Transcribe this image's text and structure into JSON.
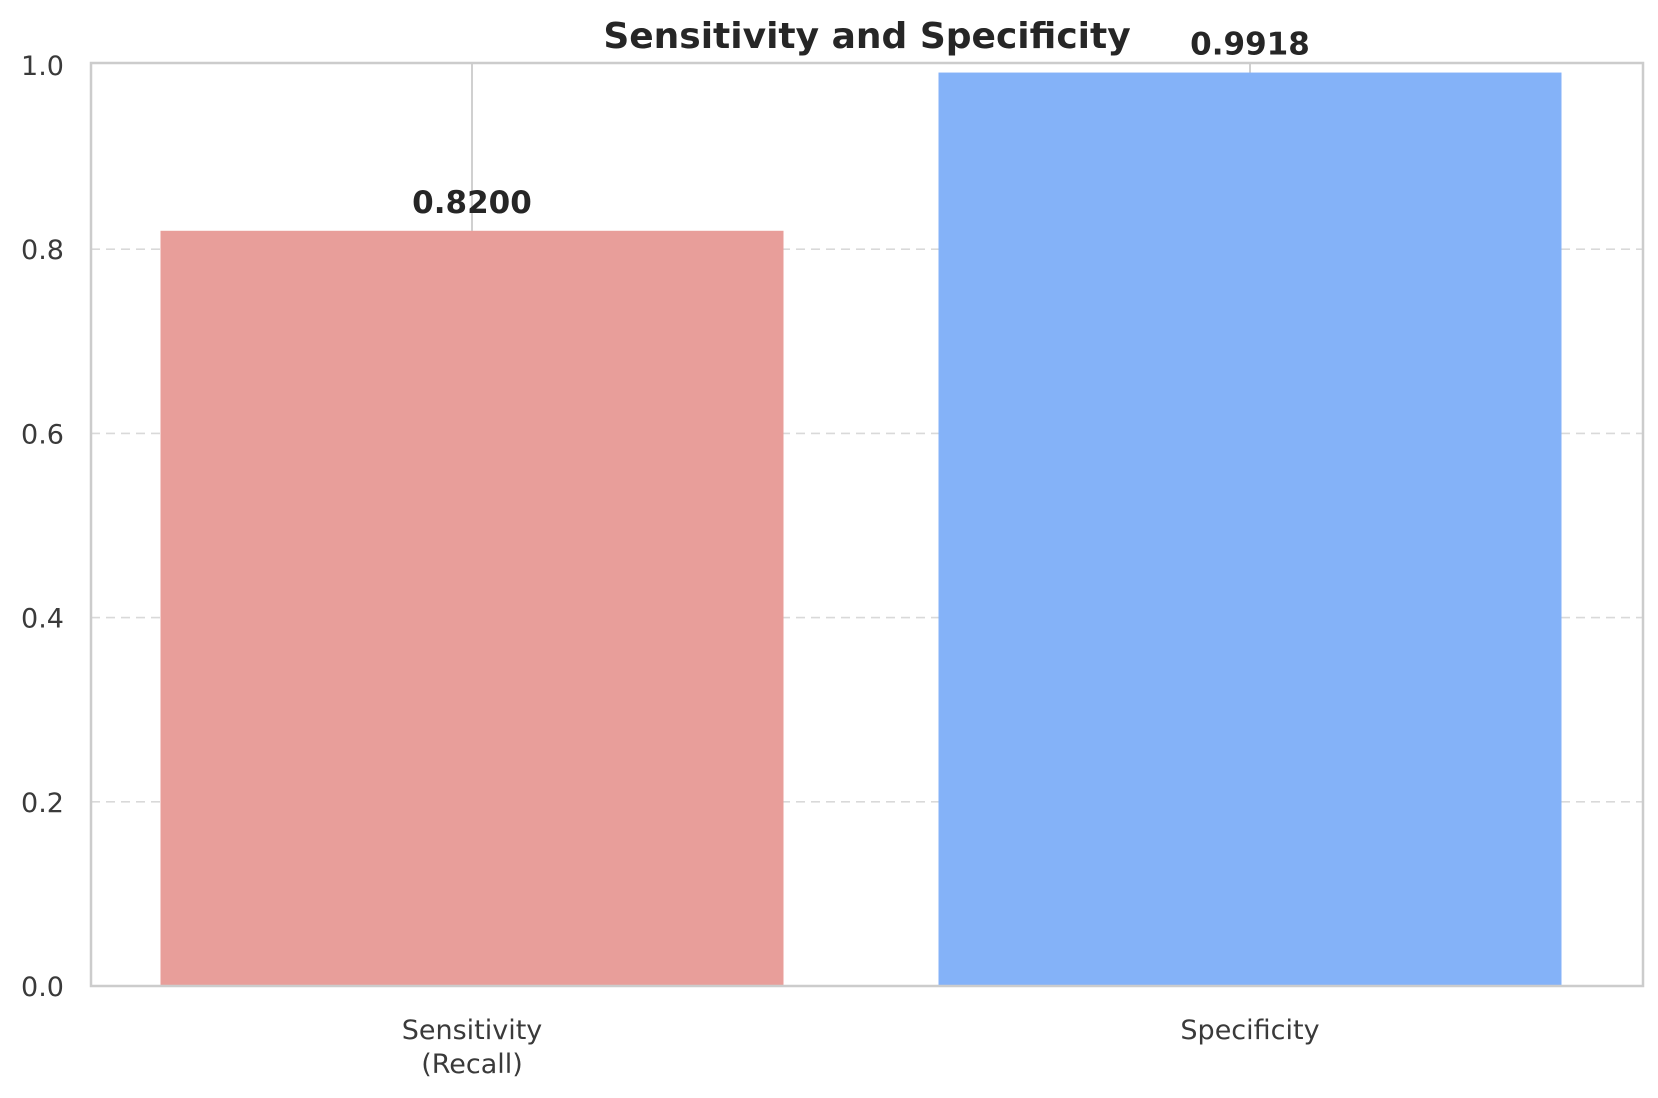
{
  "chart_data": {
    "type": "bar",
    "title": "Sensitivity and Specificity",
    "xlabel": "",
    "ylabel": "",
    "ylim": [
      0,
      1.0
    ],
    "yticks": [
      "0.0",
      "0.2",
      "0.4",
      "0.6",
      "0.8",
      "1.0"
    ],
    "categories": [
      [
        "Sensitivity",
        "(Recall)"
      ],
      [
        "Specificity"
      ]
    ],
    "values": [
      0.82,
      0.9918
    ],
    "data_labels": [
      "0.8200",
      "0.9918"
    ],
    "colors": [
      "#e89e9a",
      "#84b2f8"
    ],
    "grid": "horizontal dashed"
  }
}
